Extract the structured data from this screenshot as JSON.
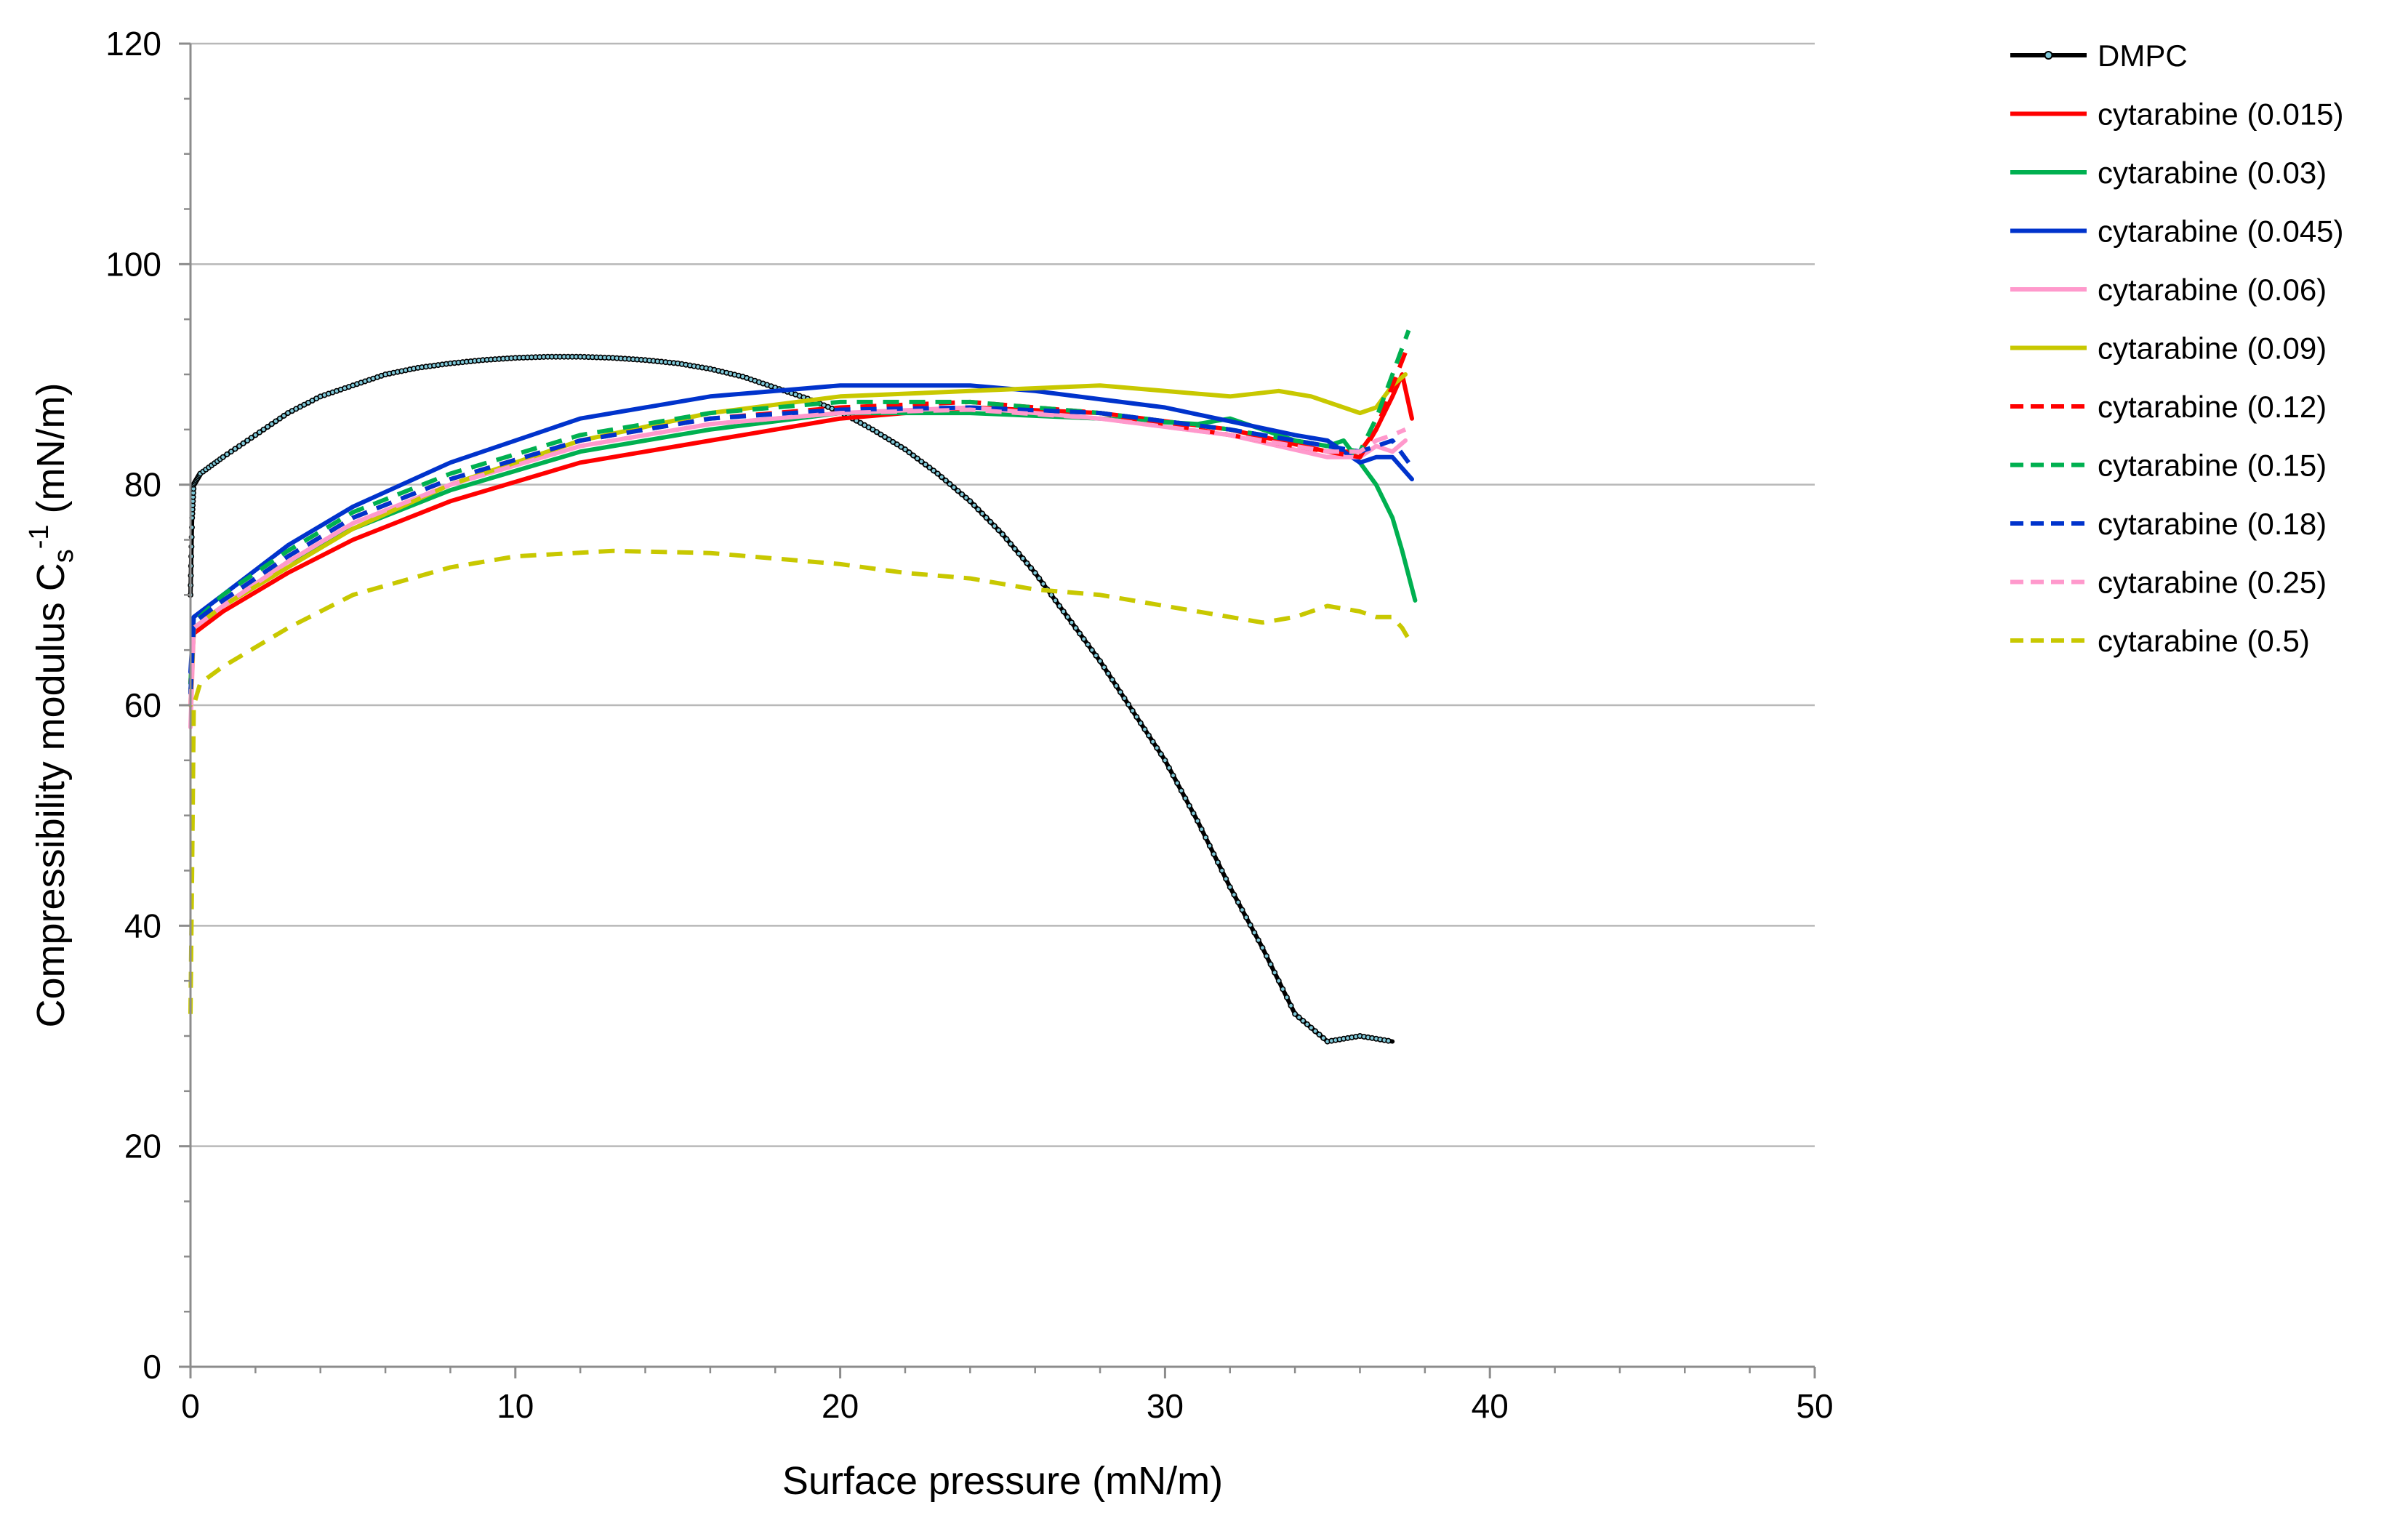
{
  "chart_data": {
    "type": "line",
    "title": "",
    "xlabel": "Surface pressure (mN/m)",
    "ylabel": {
      "main": "Compressibility modulus  C",
      "sub": "s",
      "sup": "-1",
      "unit": " (mN/m)"
    },
    "xlim": [
      0,
      50
    ],
    "ylim": [
      0,
      120
    ],
    "xticks": [
      0,
      10,
      20,
      30,
      40,
      50
    ],
    "yticks": [
      0,
      20,
      40,
      60,
      80,
      100,
      120
    ],
    "grid": "horizontal",
    "legend_position": "right",
    "series": [
      {
        "name": "DMPC",
        "color": "#000000",
        "dash": "solid",
        "marker": "circle",
        "x": [
          0,
          0.05,
          0.1,
          0.3,
          1,
          2,
          3,
          4,
          5,
          6,
          7,
          8,
          9,
          10,
          11,
          12,
          13,
          14,
          15,
          16,
          17,
          18,
          19,
          20,
          21,
          22,
          23,
          24,
          25,
          26,
          27,
          28,
          29,
          30,
          31,
          32,
          33,
          34,
          35,
          36,
          37
        ],
        "y": [
          70,
          77,
          80,
          81,
          82.5,
          84.5,
          86.5,
          88,
          89,
          90,
          90.6,
          91,
          91.3,
          91.5,
          91.6,
          91.6,
          91.5,
          91.3,
          91,
          90.5,
          89.8,
          88.8,
          87.8,
          86.6,
          85,
          83.2,
          81,
          78.5,
          75.5,
          72,
          68,
          64,
          59.5,
          55,
          49.5,
          43.5,
          38,
          32,
          29.5,
          30,
          29.5
        ]
      },
      {
        "name": "cytarabine (0.015)",
        "color": "#ff0000",
        "dash": "solid",
        "x": [
          0,
          0.1,
          1,
          3,
          5,
          8,
          12,
          16,
          20,
          24,
          28,
          32,
          35,
          36,
          36.5,
          37,
          37.3,
          37.6
        ],
        "y": [
          62,
          66.5,
          68.5,
          72,
          75,
          78.5,
          82,
          84,
          86,
          87,
          86.5,
          85,
          83,
          83,
          85,
          88,
          90,
          86
        ]
      },
      {
        "name": "cytarabine (0.03)",
        "color": "#00b050",
        "dash": "solid",
        "x": [
          0,
          0.1,
          1,
          3,
          5,
          8,
          12,
          16,
          20,
          24,
          28,
          31,
          32,
          33,
          34,
          35,
          35.5,
          36,
          36.5,
          37,
          37.3,
          37.7
        ],
        "y": [
          62,
          67,
          69,
          73,
          76,
          79.5,
          83,
          85,
          86.5,
          86.5,
          86,
          85.5,
          86,
          85,
          84,
          83.5,
          84,
          82,
          80,
          77,
          74,
          69.5
        ]
      },
      {
        "name": "cytarabine (0.045)",
        "color": "#0033cc",
        "dash": "solid",
        "x": [
          0,
          0.1,
          1,
          3,
          5,
          8,
          12,
          16,
          20,
          24,
          26,
          30,
          34,
          35,
          36,
          36.5,
          37,
          37.6
        ],
        "y": [
          63,
          68,
          70,
          74.5,
          78,
          82,
          86,
          88,
          89,
          89,
          88.5,
          87,
          84.5,
          84,
          82,
          82.5,
          82.5,
          80.5
        ]
      },
      {
        "name": "cytarabine (0.06)",
        "color": "#ff99cc",
        "dash": "solid",
        "x": [
          0,
          0.1,
          1,
          3,
          5,
          8,
          12,
          16,
          20,
          24,
          28,
          32,
          35,
          36,
          36.5,
          37,
          37.4
        ],
        "y": [
          58,
          67,
          69,
          73,
          76.5,
          80,
          83.5,
          85.5,
          86.5,
          87,
          86,
          84.5,
          82.5,
          82.5,
          83.5,
          83,
          84
        ]
      },
      {
        "name": "cytarabine (0.09)",
        "color": "#c8c800",
        "dash": "solid",
        "x": [
          0,
          0.1,
          1,
          3,
          5,
          8,
          12,
          16,
          20,
          24,
          28,
          30,
          32,
          33.5,
          34.5,
          35.5,
          36,
          36.5,
          37,
          37.4
        ],
        "y": [
          60,
          67,
          69,
          72.5,
          76,
          80,
          84,
          86.5,
          88,
          88.5,
          89,
          88.5,
          88,
          88.5,
          88,
          87,
          86.5,
          87,
          89,
          90
        ]
      },
      {
        "name": "cytarabine (0.12)",
        "color": "#ff0000",
        "dash": "dash",
        "x": [
          0,
          0.1,
          1,
          3,
          5,
          8,
          12,
          16,
          20,
          24,
          28,
          32,
          35,
          36,
          36.5,
          37,
          37.4
        ],
        "y": [
          61,
          67.5,
          69.5,
          73.5,
          77,
          80.5,
          84,
          86,
          87,
          87.5,
          86.5,
          84.5,
          83,
          82.5,
          85,
          89,
          92
        ]
      },
      {
        "name": "cytarabine (0.15)",
        "color": "#00b050",
        "dash": "dash",
        "x": [
          0,
          0.1,
          1,
          3,
          5,
          8,
          12,
          16,
          20,
          24,
          28,
          32,
          35,
          36,
          36.5,
          37,
          37.5
        ],
        "y": [
          61,
          67.5,
          70,
          74,
          77.5,
          81,
          84.5,
          86.5,
          87.5,
          87.5,
          86.5,
          85,
          83.5,
          83,
          86,
          90,
          94
        ]
      },
      {
        "name": "cytarabine (0.18)",
        "color": "#0033cc",
        "dash": "dash",
        "x": [
          0,
          0.1,
          1,
          3,
          5,
          8,
          12,
          16,
          20,
          24,
          28,
          32,
          35,
          36,
          36.5,
          37,
          37.5
        ],
        "y": [
          61,
          67.5,
          69.5,
          73.5,
          77,
          80.5,
          84,
          86,
          86.8,
          87,
          86.5,
          85,
          83.5,
          83,
          83.5,
          84,
          82
        ]
      },
      {
        "name": "cytarabine (0.25)",
        "color": "#ff99cc",
        "dash": "dash",
        "x": [
          0,
          0.1,
          1,
          3,
          5,
          8,
          12,
          16,
          20,
          24,
          28,
          32,
          35,
          36,
          36.5,
          37,
          37.4
        ],
        "y": [
          60,
          67,
          69,
          73,
          76.5,
          80,
          83.5,
          85.5,
          86.5,
          86.8,
          86,
          84.5,
          83,
          83,
          84,
          84.5,
          85
        ]
      },
      {
        "name": "cytarabine (0.5)",
        "color": "#c8c800",
        "dash": "dash",
        "x": [
          0,
          0.05,
          0.1,
          0.3,
          1,
          3,
          5,
          8,
          10,
          13,
          16,
          18,
          20,
          22,
          24,
          26,
          28,
          30,
          32,
          33,
          34,
          35,
          36,
          36.5,
          37,
          37.3,
          37.6
        ],
        "y": [
          32,
          45,
          60,
          62,
          63.5,
          67,
          70,
          72.5,
          73.5,
          74,
          73.8,
          73.3,
          72.8,
          72,
          71.5,
          70.5,
          70,
          69,
          68,
          67.5,
          68,
          69,
          68.5,
          68,
          68,
          67,
          65.5
        ]
      }
    ]
  }
}
